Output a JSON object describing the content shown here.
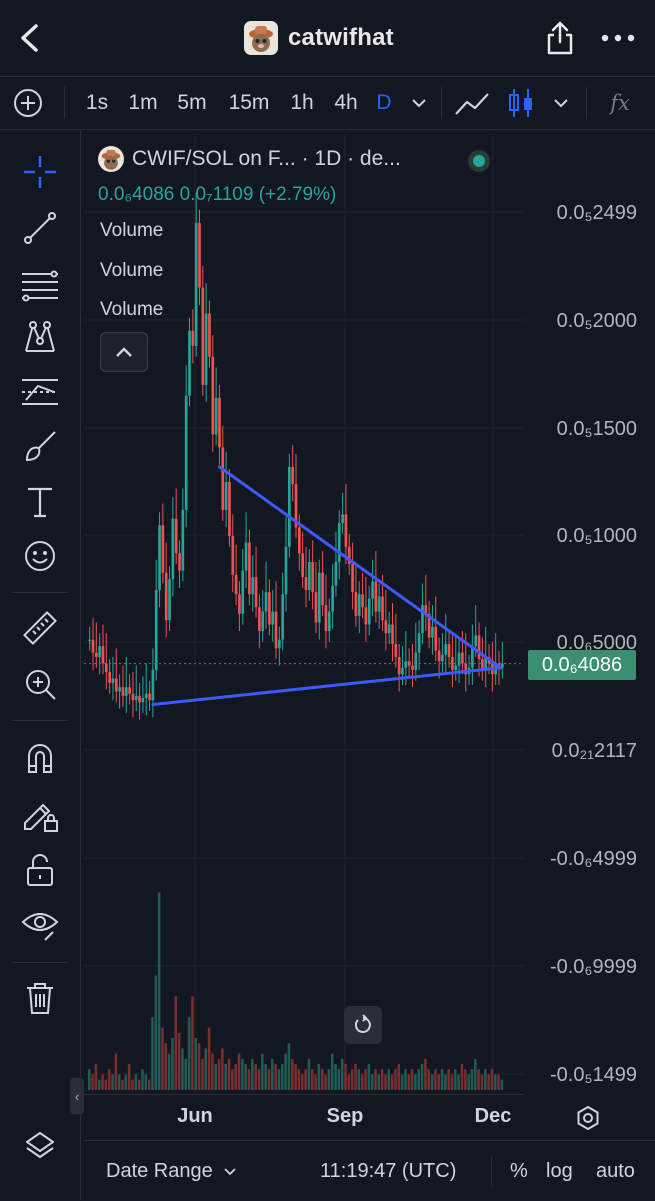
{
  "header": {
    "title": "catwifhat",
    "icons": {
      "back": "chevron-left-icon",
      "share": "share-icon",
      "more": "more-horizontal-icon"
    }
  },
  "toolbar": {
    "intervals": [
      "1s",
      "1m",
      "5m",
      "15m",
      "1h",
      "4h",
      "D"
    ],
    "active_interval": "D",
    "indicators_label": "fx"
  },
  "legend": {
    "symbol": "CWIF/SOL on F... · 1D · de...",
    "ohlc": "0.0₆4086  0.0₇1109 (+2.79%)",
    "volume_labels": [
      "Volume",
      "Volume",
      "Volume"
    ]
  },
  "axis": {
    "labels": [
      "0.0₅2499",
      "0.0₅2000",
      "0.0₅1500",
      "0.0₅1000",
      "0.0₆5000",
      "0.0₂₁2117",
      "-0.0₆4999",
      "-0.0₆9999",
      "-0.0₅1499"
    ],
    "current_price": "0.0₆4086"
  },
  "chart_data": {
    "type": "candlestick",
    "series_values": [
      5.2,
      4.6,
      4.4,
      4.9,
      4.1,
      3.7,
      3.2,
      3.4,
      2.8,
      3.0,
      2.6,
      3.0,
      2.7,
      2.4,
      2.6,
      2.3,
      2.5,
      2.7,
      2.4,
      3.8,
      7.5,
      10.5,
      8.3,
      6.1,
      8.0,
      10.8,
      9.2,
      8.4,
      11.2,
      16.5,
      19.5,
      18.8,
      24.5,
      21.5,
      17.0,
      20.3,
      18.3,
      14.7,
      16.4,
      14.1,
      11.2,
      12.5,
      10.0,
      8.2,
      7.3,
      6.4,
      8.4,
      9.7,
      7.3,
      8.1,
      6.7,
      5.6,
      6.5,
      7.4,
      5.9,
      6.5,
      4.8,
      5.2,
      7.3,
      9.5,
      13.2,
      12.4,
      10.4,
      9.2,
      8.1,
      7.5,
      8.8,
      7.4,
      6.0,
      8.3,
      6.8,
      5.6,
      6.5,
      7.7,
      8.8,
      10.6,
      11.0,
      9.5,
      8.7,
      7.4,
      6.3,
      7.3,
      6.7,
      5.9,
      7.1,
      7.9,
      6.5,
      7.2,
      6.1,
      5.5,
      5.9,
      5.0,
      4.4,
      3.6,
      3.9,
      4.2,
      4.0,
      3.8,
      4.6,
      5.5,
      6.8,
      6.4,
      5.3,
      5.8,
      4.7,
      4.2,
      4.5,
      5.0,
      4.4,
      3.8,
      4.0,
      4.6,
      4.1,
      3.6,
      3.9,
      4.9,
      5.4,
      4.3,
      3.8,
      4.4,
      4.1,
      3.6,
      4.1,
      3.9,
      4.09
    ],
    "volume_values": [
      4,
      3,
      5,
      2,
      3,
      2,
      4,
      3,
      7,
      3,
      2,
      3,
      5,
      2,
      3,
      2,
      4,
      3,
      2,
      14,
      22,
      38,
      12,
      9,
      7,
      10,
      18,
      11,
      8,
      6,
      14,
      18,
      10,
      9,
      6,
      8,
      12,
      7,
      5,
      6,
      8,
      5,
      6,
      4,
      5,
      7,
      6,
      5,
      4,
      6,
      5,
      4,
      7,
      5,
      4,
      6,
      5,
      4,
      5,
      7,
      9,
      6,
      5,
      4,
      3,
      4,
      6,
      4,
      3,
      5,
      4,
      3,
      4,
      7,
      5,
      4,
      6,
      5,
      3,
      4,
      5,
      4,
      3,
      4,
      5,
      3,
      4,
      3,
      4,
      3,
      4,
      3,
      4,
      5,
      3,
      4,
      3,
      4,
      3,
      4,
      5,
      6,
      4,
      3,
      4,
      3,
      4,
      3,
      4,
      3,
      4,
      3,
      5,
      4,
      3,
      4,
      6,
      4,
      3,
      4,
      3,
      4,
      3,
      3,
      2
    ],
    "x_labels": [
      "Jun",
      "Sep",
      "Dec"
    ],
    "y_axis_labels": [
      "0.0₅2499",
      "0.0₅2000",
      "0.0₅1500",
      "0.0₅1000",
      "0.0₆5000",
      "0.0₂₁2117",
      "-0.0₆4999",
      "-0.0₆9999",
      "-0.0₅1499"
    ],
    "current_value_label": "0.0₆4086",
    "trendlines": [
      {
        "name": "descending",
        "from": [
          39.5,
          13.2
        ],
        "to": [
          124,
          3.9
        ]
      },
      {
        "name": "ascending",
        "from": [
          19.5,
          2.2
        ],
        "to": [
          124,
          3.9
        ]
      }
    ],
    "colors": {
      "up": "#26a69a",
      "down": "#ef5350",
      "trendline": "#3d5afe"
    }
  },
  "time_axis": {
    "labels": [
      "Jun",
      "Sep",
      "Dec"
    ]
  },
  "bottombar": {
    "date_range": "Date Range",
    "clock": "11:19:47 (UTC)",
    "percent": "%",
    "log": "log",
    "auto": "auto"
  },
  "tools": [
    "crosshair-icon",
    "trend-line-icon",
    "fib-icon",
    "pattern-icon",
    "forecast-icon",
    "brush-icon",
    "text-icon",
    "emoji-icon",
    "ruler-icon",
    "zoom-in-icon",
    "magnet-icon",
    "lock-drawing-icon",
    "unlock-icon",
    "eye-icon",
    "trash-icon"
  ]
}
